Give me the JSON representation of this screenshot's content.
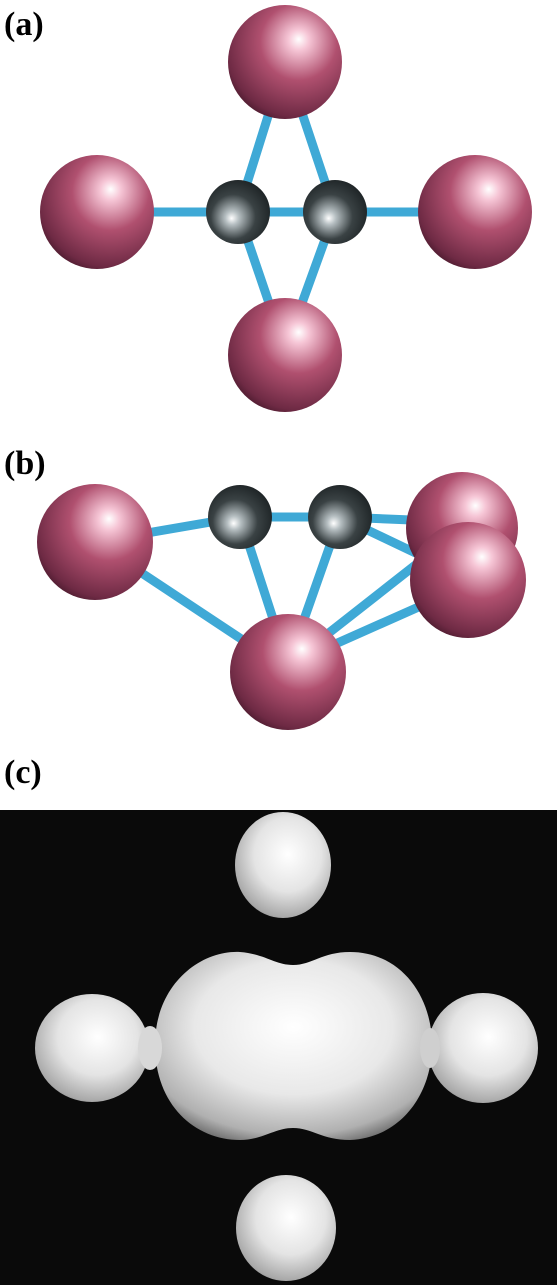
{
  "labels": {
    "a": "(a)",
    "b": "(b)",
    "c": "(c)"
  },
  "colors": {
    "large_atom": "#b0506f",
    "small_atom": "#3a4244",
    "bond": "#3fa9d6",
    "isosurface": "#e6e6e6",
    "isosurface_background": "#0a0a0a"
  }
}
